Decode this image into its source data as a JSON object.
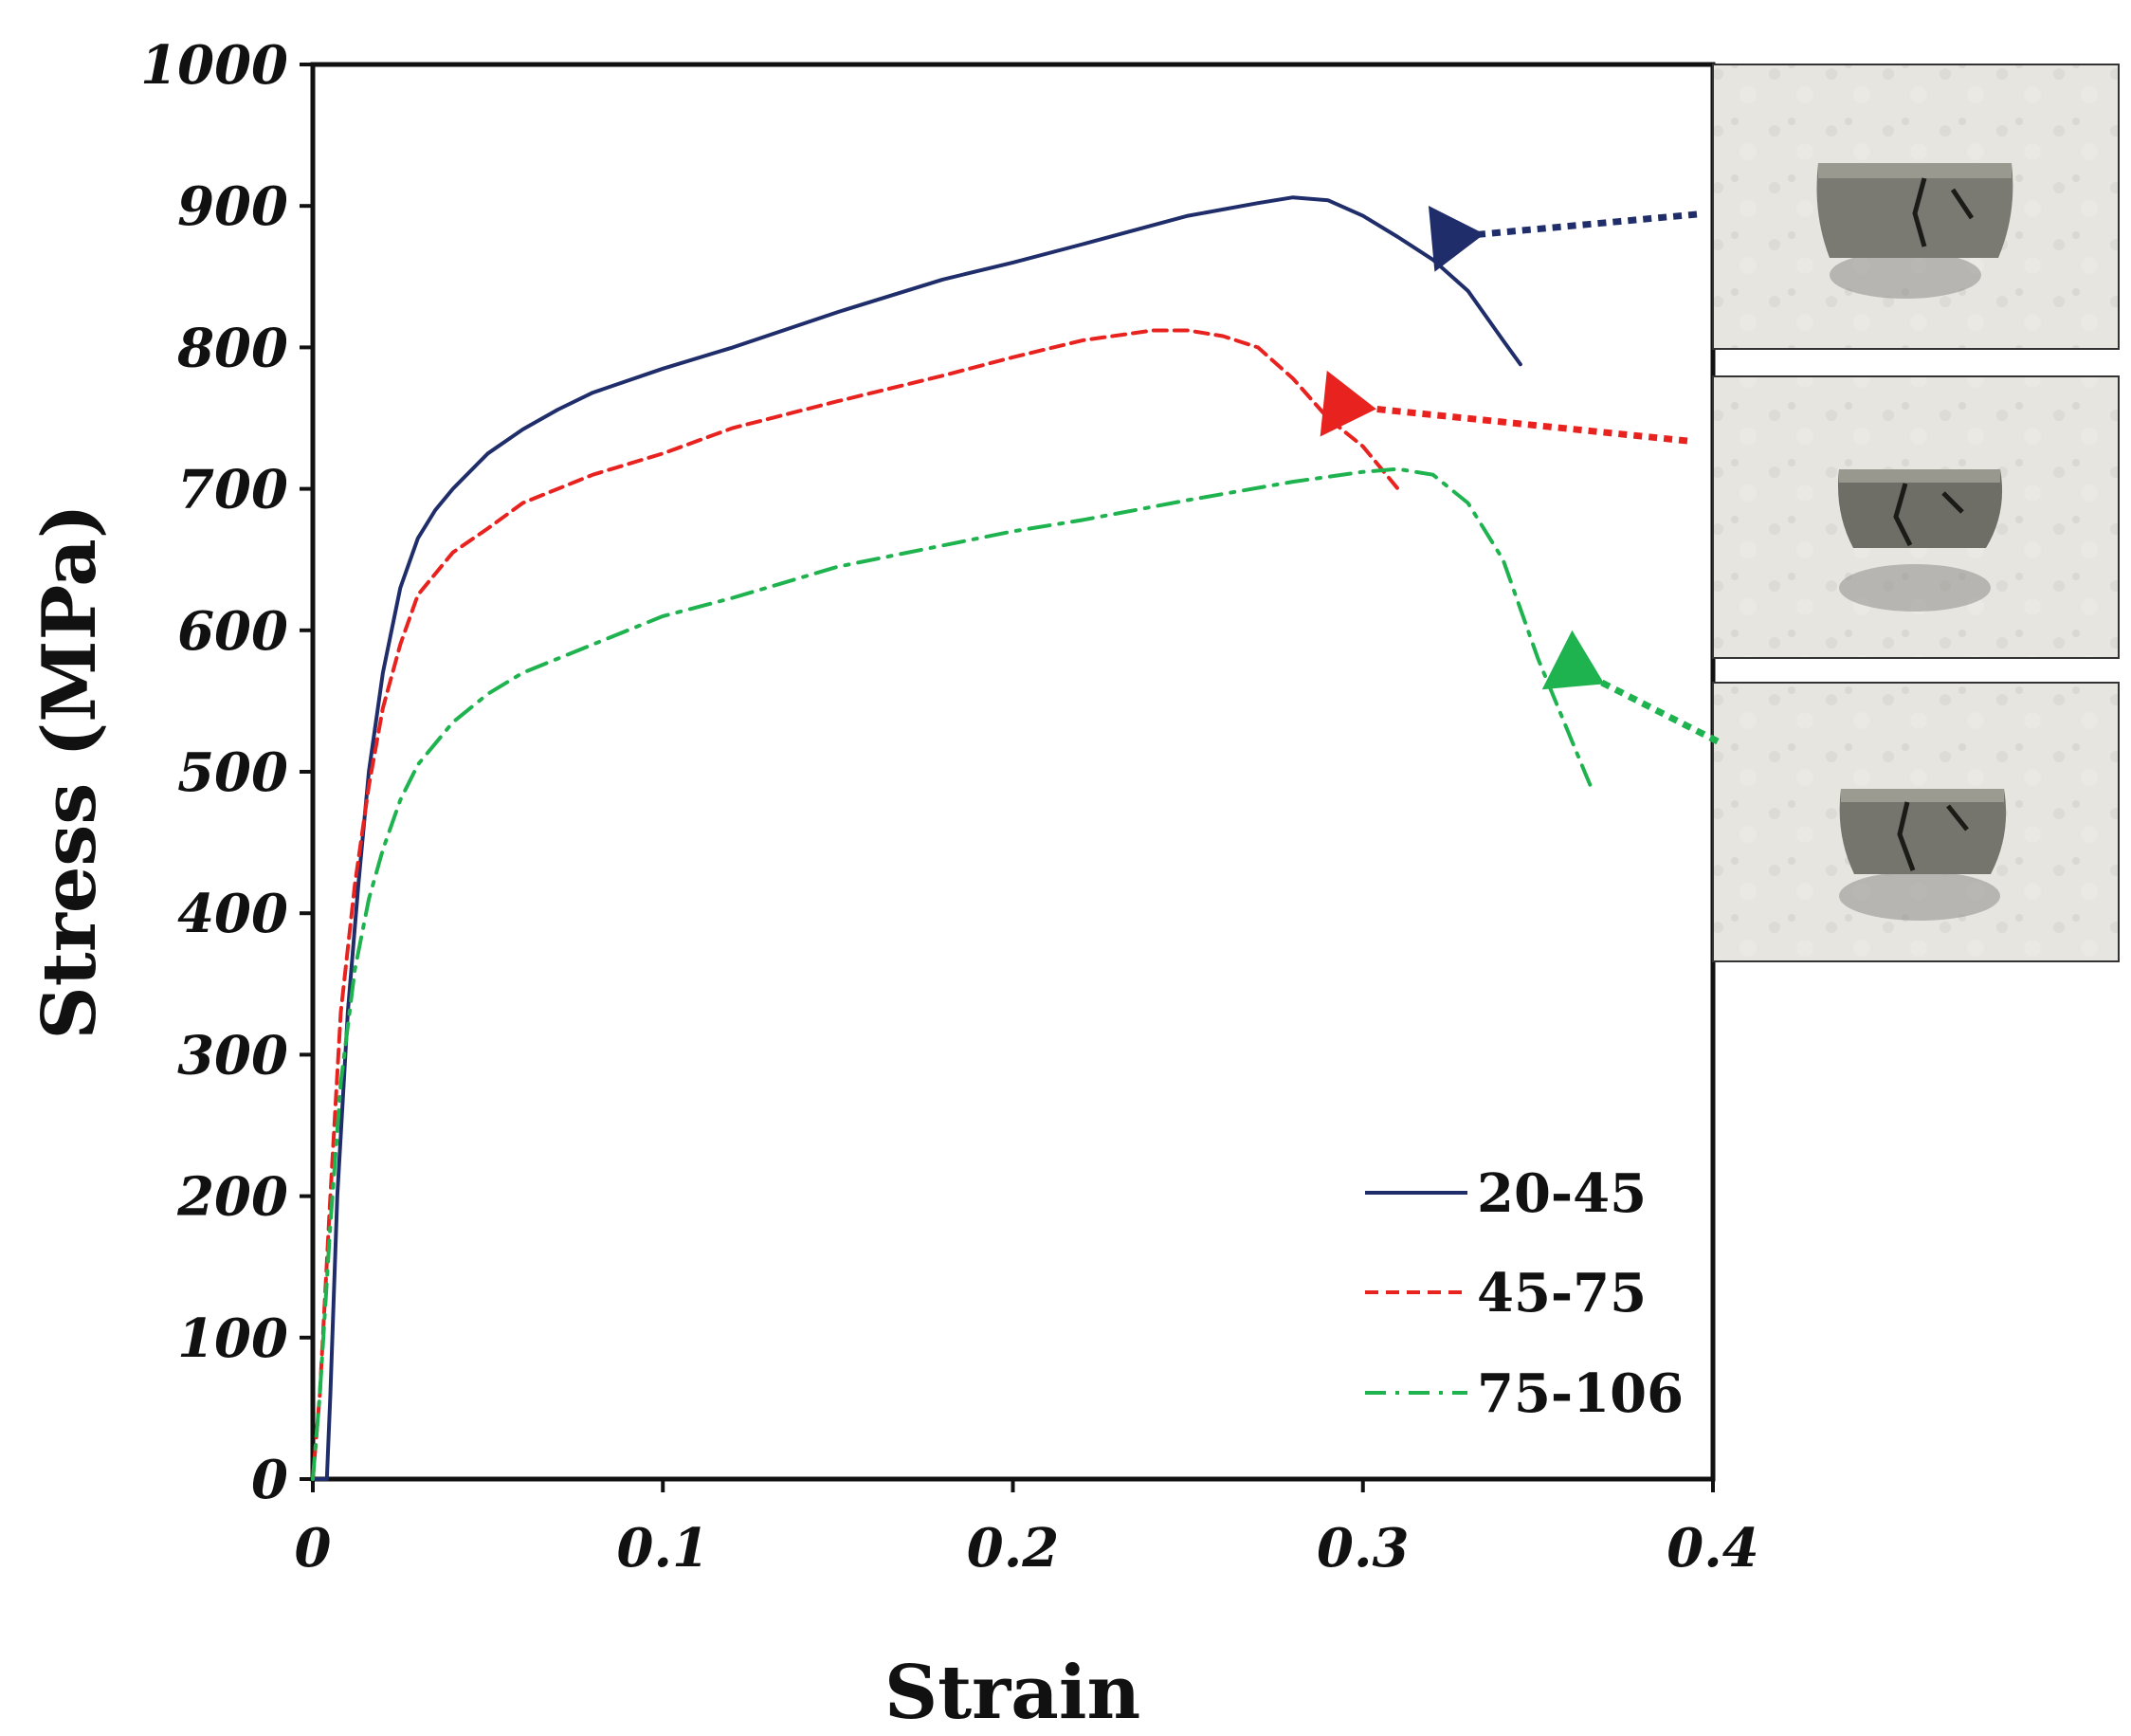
{
  "chart_data": {
    "type": "line",
    "title": "",
    "xlabel": "Strain",
    "ylabel": "Stress (MPa)",
    "xlim": [
      0,
      0.4
    ],
    "ylim": [
      0,
      1000
    ],
    "xticks": [
      0,
      0.1,
      0.2,
      0.3,
      0.4
    ],
    "xtick_labels": [
      "0",
      "0.1",
      "0.2",
      "0.3",
      "0.4"
    ],
    "yticks": [
      0,
      100,
      200,
      300,
      400,
      500,
      600,
      700,
      800,
      900,
      1000
    ],
    "ytick_labels": [
      "0",
      "100",
      "200",
      "300",
      "400",
      "500",
      "600",
      "700",
      "800",
      "900",
      "1000"
    ],
    "grid": false,
    "legend_position": "bottom-right",
    "series": [
      {
        "name": "20-45",
        "color": "#1f2d6b",
        "style": "solid",
        "x": [
          0,
          0.004,
          0.005,
          0.007,
          0.01,
          0.013,
          0.016,
          0.02,
          0.025,
          0.03,
          0.035,
          0.04,
          0.05,
          0.06,
          0.07,
          0.08,
          0.1,
          0.12,
          0.15,
          0.18,
          0.2,
          0.22,
          0.25,
          0.27,
          0.28,
          0.29,
          0.3,
          0.31,
          0.32,
          0.33,
          0.34,
          0.345
        ],
        "y": [
          0,
          0,
          60,
          200,
          330,
          420,
          500,
          570,
          630,
          665,
          685,
          700,
          725,
          742,
          756,
          768,
          785,
          800,
          825,
          848,
          860,
          873,
          893,
          902,
          906,
          904,
          893,
          878,
          862,
          840,
          805,
          788
        ]
      },
      {
        "name": "45-75",
        "color": "#e8231f",
        "style": "dashed",
        "x": [
          0,
          0.002,
          0.005,
          0.008,
          0.012,
          0.016,
          0.02,
          0.025,
          0.03,
          0.04,
          0.05,
          0.06,
          0.08,
          0.1,
          0.12,
          0.15,
          0.18,
          0.2,
          0.22,
          0.24,
          0.25,
          0.26,
          0.27,
          0.28,
          0.29,
          0.3,
          0.31
        ],
        "y": [
          0,
          60,
          200,
          330,
          420,
          490,
          545,
          590,
          625,
          655,
          672,
          690,
          710,
          725,
          743,
          762,
          780,
          793,
          805,
          812,
          812,
          808,
          800,
          778,
          750,
          730,
          700
        ]
      },
      {
        "name": "75-106",
        "color": "#1fb34f",
        "style": "dashdot",
        "x": [
          0,
          0.002,
          0.005,
          0.008,
          0.012,
          0.016,
          0.02,
          0.025,
          0.03,
          0.04,
          0.05,
          0.06,
          0.08,
          0.1,
          0.12,
          0.15,
          0.18,
          0.2,
          0.22,
          0.25,
          0.28,
          0.3,
          0.31,
          0.32,
          0.33,
          0.34,
          0.35,
          0.36,
          0.365
        ],
        "y": [
          0,
          60,
          180,
          280,
          360,
          410,
          445,
          480,
          505,
          535,
          555,
          570,
          590,
          610,
          623,
          645,
          660,
          670,
          678,
          692,
          705,
          712,
          714,
          710,
          690,
          650,
          580,
          520,
          490
        ]
      }
    ],
    "annotations": [
      {
        "type": "arrow",
        "color": "#1f2d6b",
        "target_series": "20-45",
        "description": "dotted arrow from specimen photo to fracture region"
      },
      {
        "type": "arrow",
        "color": "#e8231f",
        "target_series": "45-75",
        "description": "dotted arrow from specimen photo to fracture region"
      },
      {
        "type": "arrow",
        "color": "#1fb34f",
        "target_series": "75-106",
        "description": "dotted arrow from specimen photo to fracture region"
      }
    ]
  }
}
